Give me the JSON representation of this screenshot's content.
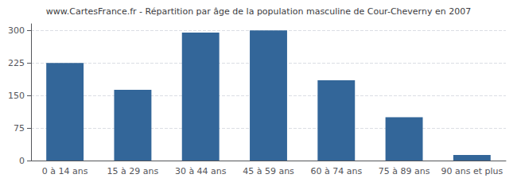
{
  "chart_data": {
    "type": "bar",
    "title": "www.CartesFrance.fr - Répartition par âge de la population masculine de Cour-Cheverny en 2007",
    "categories": [
      "0 à 14 ans",
      "15 à 29 ans",
      "30 à 44 ans",
      "45 à 59 ans",
      "60 à 74 ans",
      "75 à 89 ans",
      "90 ans et plus"
    ],
    "values": [
      225,
      163,
      295,
      300,
      185,
      100,
      13
    ],
    "color": "#336699",
    "ylim": [
      0,
      315
    ],
    "yticks": [
      0,
      75,
      150,
      225,
      300
    ],
    "grid": true
  }
}
